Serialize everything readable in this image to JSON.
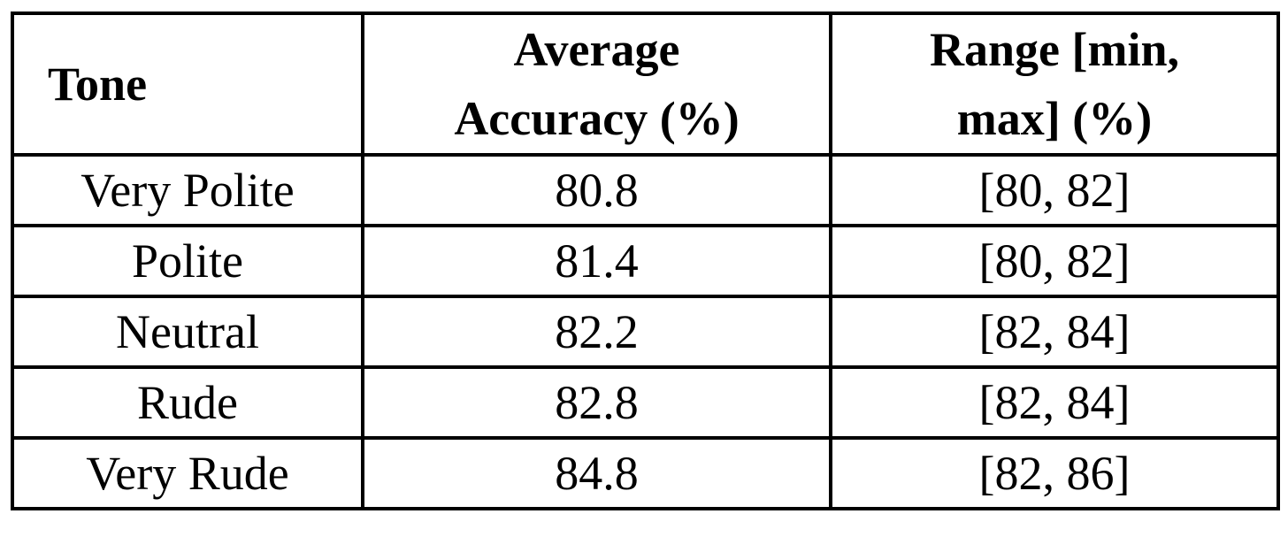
{
  "table": {
    "header": [
      "Tone",
      "Average Accuracy (%)",
      "Range [min, max] (%)"
    ],
    "rows": [
      [
        "Very Polite",
        80.8,
        "[80, 82]"
      ],
      [
        "Polite",
        81.4,
        "[80, 82]"
      ],
      [
        "Neutral",
        82.2,
        "[82, 84]"
      ],
      [
        "Rude",
        82.8,
        "[82, 84]"
      ],
      [
        "Very Rude",
        84.8,
        "[82, 86]"
      ]
    ]
  }
}
